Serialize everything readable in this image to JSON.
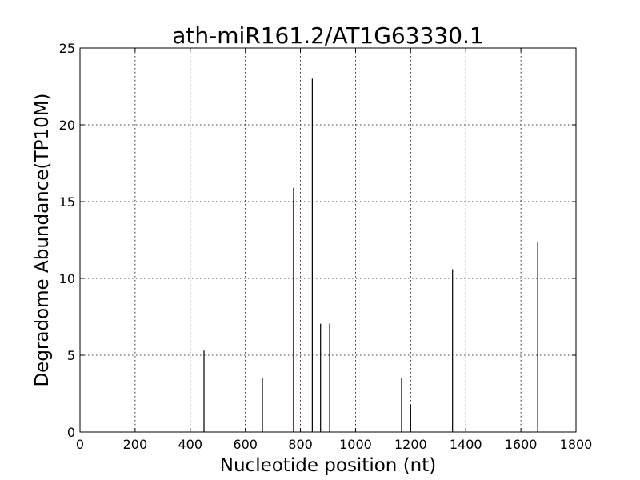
{
  "chart_data": {
    "type": "bar",
    "title": "ath-miR161.2/AT1G63330.1",
    "xlabel": "Nucleotide position (nt)",
    "ylabel": "Degradome Abundance(TP10M)",
    "xlim": [
      0,
      1800
    ],
    "ylim": [
      0,
      25
    ],
    "xticks": [
      "0",
      "200",
      "400",
      "600",
      "800",
      "1000",
      "1200",
      "1400",
      "1600",
      "1800"
    ],
    "yticks": [
      "0",
      "5",
      "10",
      "15",
      "20",
      "25"
    ],
    "grid": true,
    "series": [
      {
        "color": "#000000",
        "points": [
          {
            "x": 450,
            "y": 5.3
          },
          {
            "x": 662,
            "y": 3.5
          },
          {
            "x": 775,
            "y": 15.9
          },
          {
            "x": 843,
            "y": 23.0
          },
          {
            "x": 873,
            "y": 7.05
          },
          {
            "x": 906,
            "y": 7.05
          },
          {
            "x": 1167,
            "y": 3.5
          },
          {
            "x": 1200,
            "y": 1.75
          },
          {
            "x": 1352,
            "y": 10.6
          },
          {
            "x": 1661,
            "y": 12.35
          }
        ]
      },
      {
        "color": "#ff0000",
        "points": [
          {
            "x": 775,
            "y": 15.0
          }
        ]
      }
    ]
  }
}
